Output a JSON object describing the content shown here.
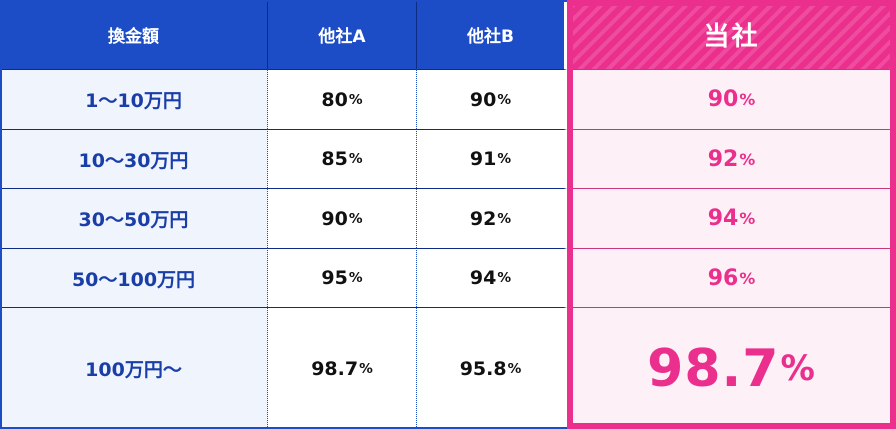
{
  "header": {
    "col_amount": "換金額",
    "col_a": "他社A",
    "col_b": "他社B",
    "col_ours": "当社"
  },
  "rows": [
    {
      "range": "1〜10万円",
      "a": "80",
      "b": "90",
      "ours": "90"
    },
    {
      "range": "10〜30万円",
      "a": "85",
      "b": "91",
      "ours": "92"
    },
    {
      "range": "30〜50万円",
      "a": "90",
      "b": "92",
      "ours": "94"
    },
    {
      "range": "50〜100万円",
      "a": "95",
      "b": "94",
      "ours": "96"
    },
    {
      "range": "100万円〜",
      "a": "98.7",
      "b": "95.8",
      "ours": "98.7"
    }
  ],
  "unit": "%",
  "colors": {
    "header_blue": "#1c4dc6",
    "label_text_blue": "#1a3ea8",
    "highlight_pink": "#ea2f8c",
    "label_bg": "#f0f4fd",
    "ours_bg": "#fdf0f7"
  }
}
